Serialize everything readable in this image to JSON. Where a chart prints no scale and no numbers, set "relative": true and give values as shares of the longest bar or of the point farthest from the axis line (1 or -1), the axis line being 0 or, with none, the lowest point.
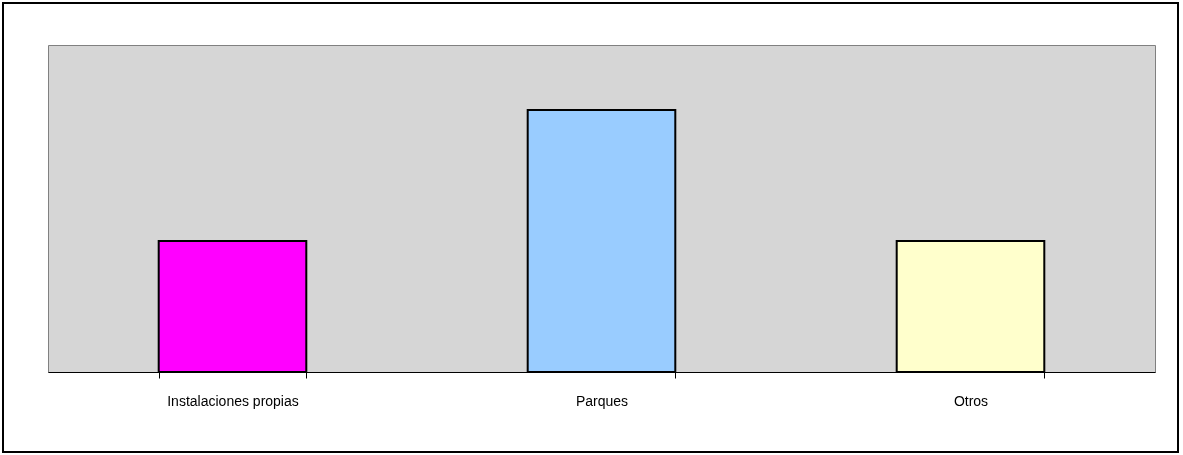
{
  "chart_data": {
    "type": "bar",
    "relative": true,
    "categories": [
      "Instalaciones propias",
      "Parques",
      "Otros"
    ],
    "values": [
      0.5,
      1,
      0.5
    ],
    "colors": [
      "#ff00ff",
      "#99ccff",
      "#ffffcc"
    ]
  }
}
